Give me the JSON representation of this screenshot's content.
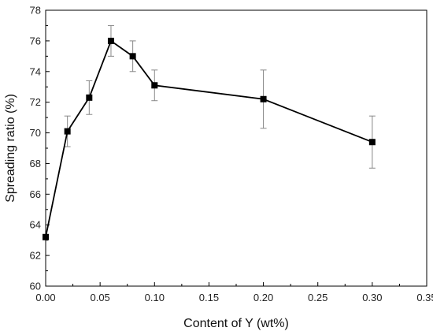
{
  "chart_data": {
    "type": "line",
    "title": "",
    "xlabel": "Content of Y (wt%)",
    "ylabel": "Spreading ratio (%)",
    "xlim": [
      0.0,
      0.35
    ],
    "ylim": [
      60,
      78
    ],
    "x_ticks": [
      "0.00",
      "0.05",
      "0.10",
      "0.15",
      "0.20",
      "0.25",
      "0.30",
      "0.35"
    ],
    "y_ticks": [
      "60",
      "62",
      "64",
      "66",
      "68",
      "70",
      "72",
      "74",
      "76",
      "78"
    ],
    "grid": false,
    "legend": "none",
    "marker": "square",
    "line_color": "#000000",
    "errorbar_color": "#888888",
    "series": [
      {
        "x": [
          0.0,
          0.02,
          0.04,
          0.06,
          0.08,
          0.1,
          0.2,
          0.3
        ],
        "y": [
          63.2,
          70.1,
          72.3,
          76.0,
          75.0,
          73.1,
          72.2,
          69.4
        ],
        "yerr": [
          0.0,
          1.0,
          1.1,
          1.0,
          1.0,
          1.0,
          1.9,
          1.7
        ]
      }
    ]
  }
}
